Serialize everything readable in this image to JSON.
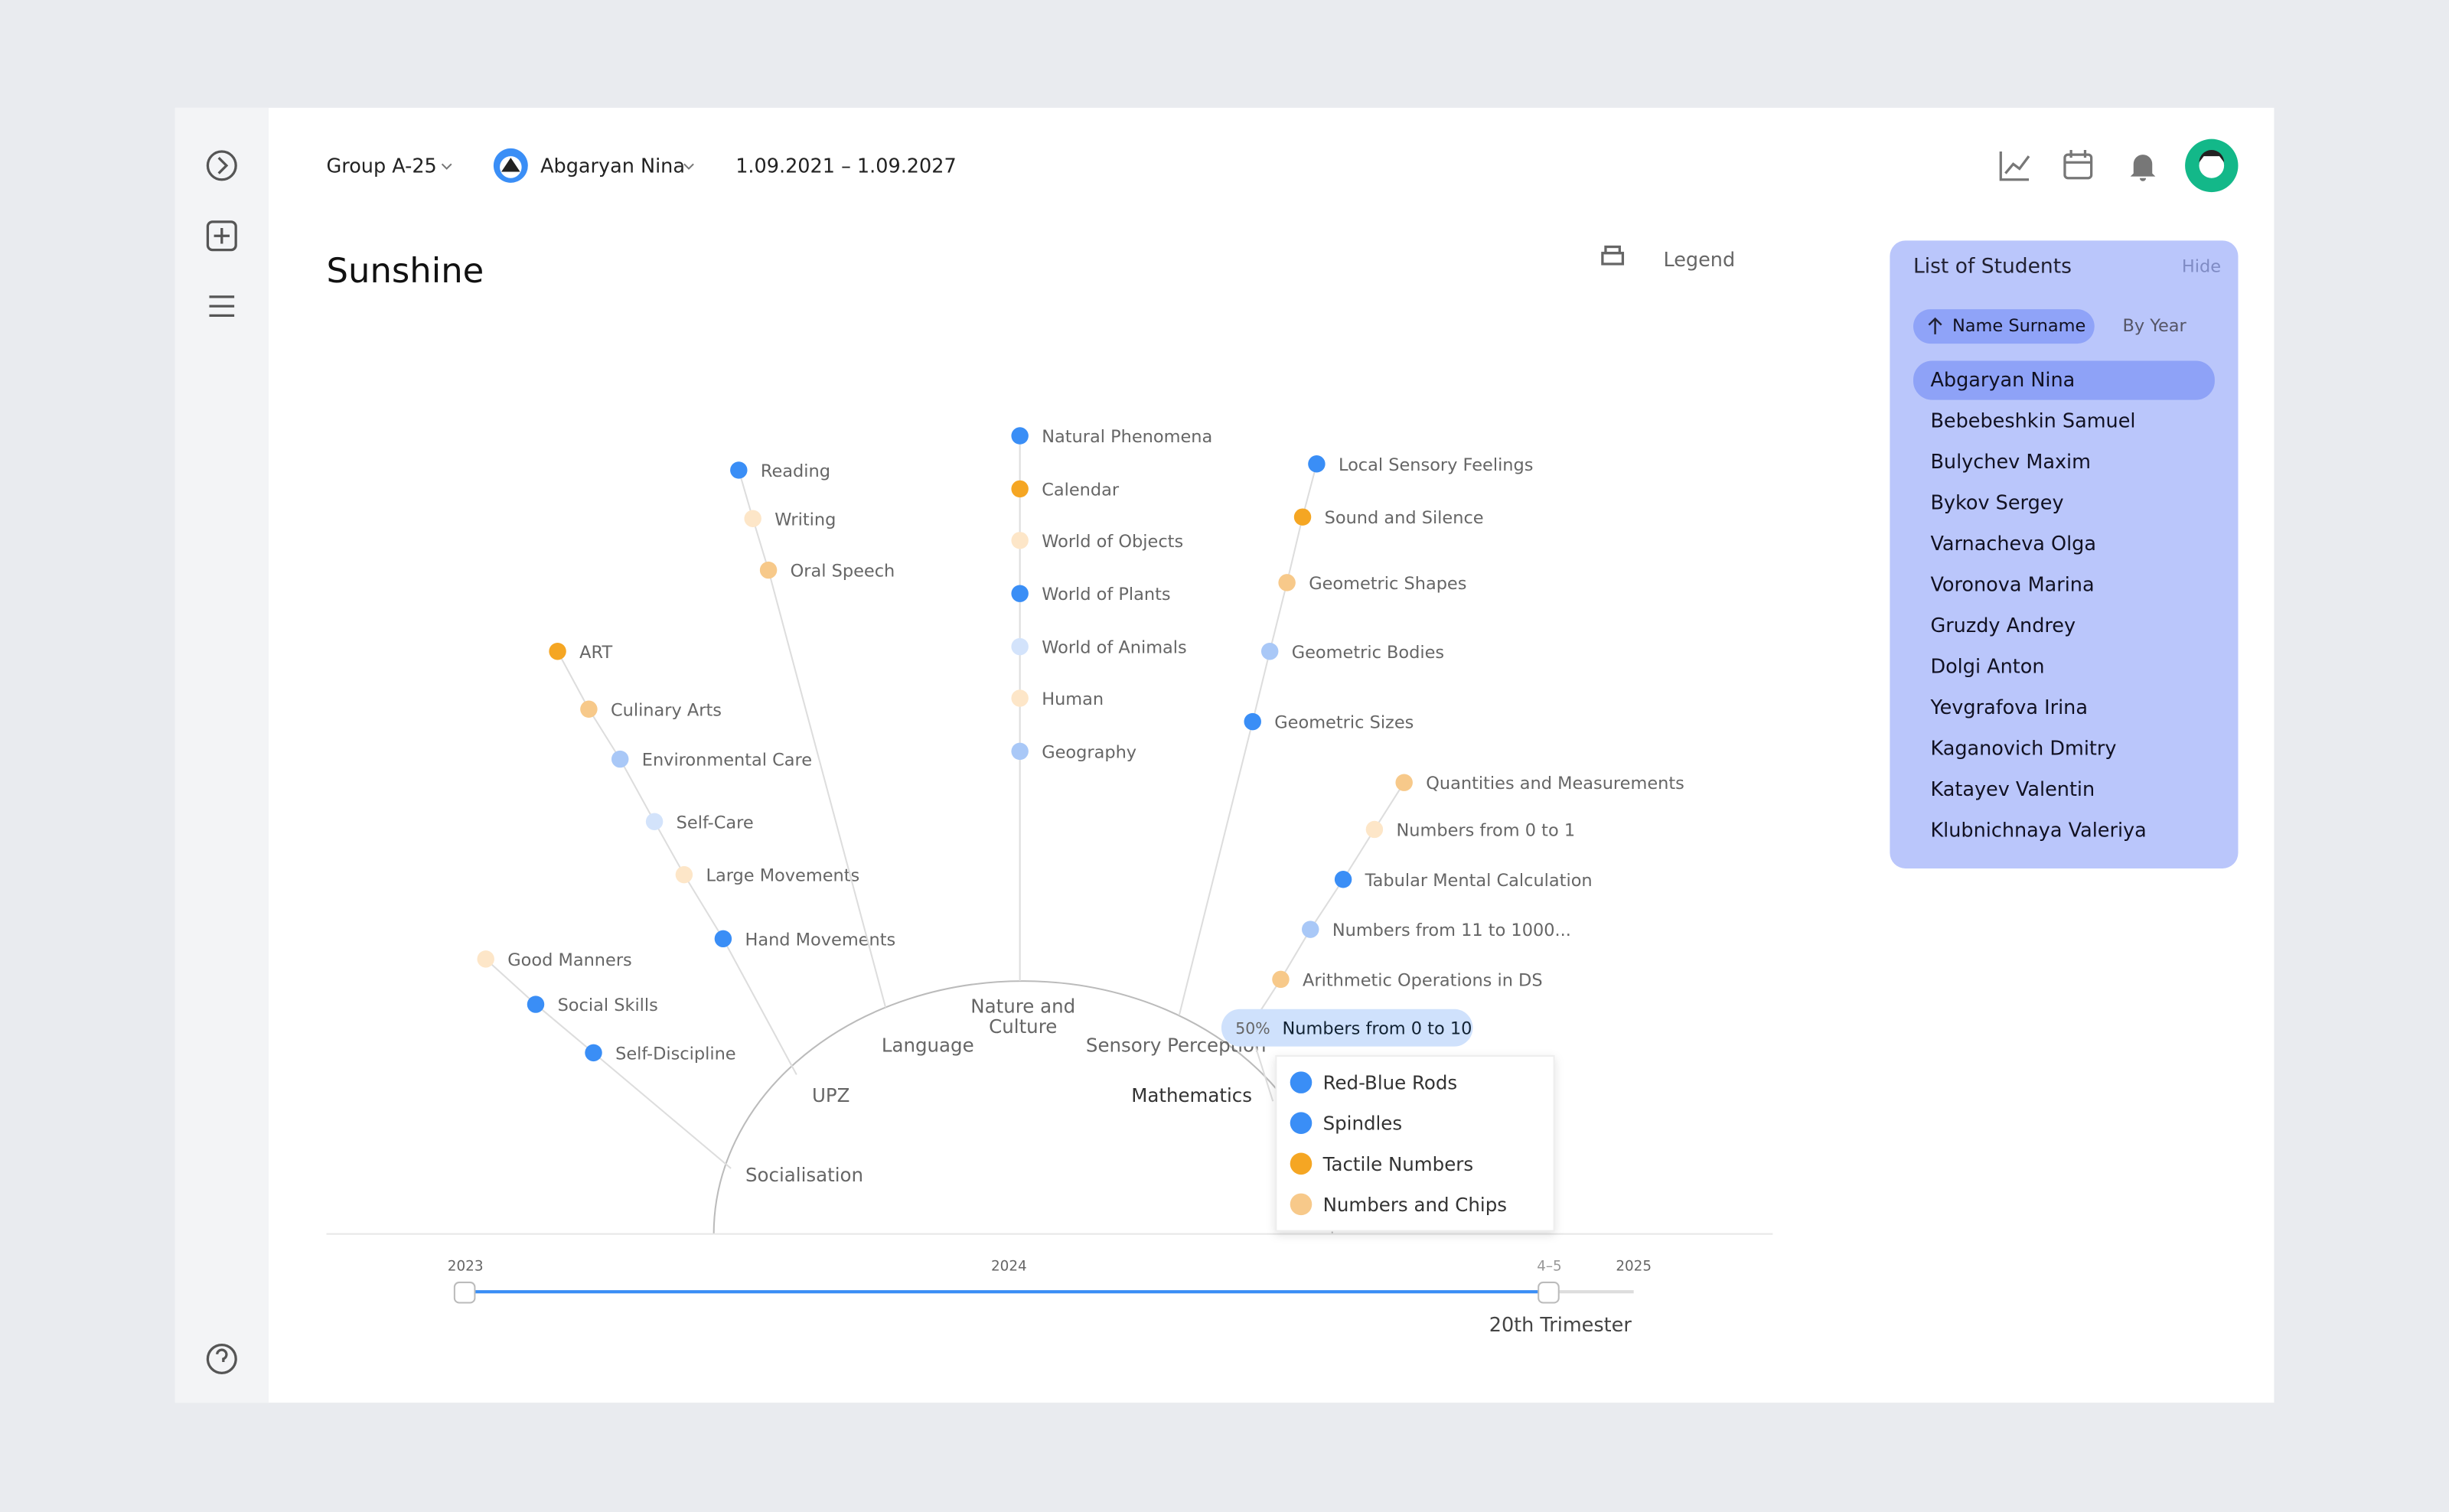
{
  "header": {
    "group": "Group A-25",
    "student": "Abgaryan Nina",
    "period": "1.09.2021 – 1.09.2027",
    "title": "Sunshine",
    "legend_button": "Legend"
  },
  "branches": [
    {
      "label": "Socialisation",
      "items": [
        {
          "label": "Self-Discipline",
          "color": "#3a8ef6"
        },
        {
          "label": "Social Skills",
          "color": "#3a8ef6"
        },
        {
          "label": "Good Manners",
          "color": "#fde6c8"
        }
      ]
    },
    {
      "label": "UPZ",
      "items": [
        {
          "label": "Hand Movements",
          "color": "#3a8ef6"
        },
        {
          "label": "Large Movements",
          "color": "#fde6c8"
        },
        {
          "label": "Self-Care",
          "color": "#d3e3fb"
        },
        {
          "label": "Environmental Care",
          "color": "#a9c8f7"
        },
        {
          "label": "Culinary Arts",
          "color": "#f7c98a"
        },
        {
          "label": "ART",
          "color": "#f5a623"
        }
      ]
    },
    {
      "label": "Language",
      "items": [
        {
          "label": "Oral Speech",
          "color": "#f7c98a"
        },
        {
          "label": "Writing",
          "color": "#fde6c8"
        },
        {
          "label": "Reading",
          "color": "#3a8ef6"
        }
      ]
    },
    {
      "label": "Nature and Culture",
      "items": [
        {
          "label": "Geography",
          "color": "#a9c8f7"
        },
        {
          "label": "Human",
          "color": "#fde6c8"
        },
        {
          "label": "World of Animals",
          "color": "#d3e3fb"
        },
        {
          "label": "World of Plants",
          "color": "#3a8ef6"
        },
        {
          "label": "World of Objects",
          "color": "#fde6c8"
        },
        {
          "label": "Calendar",
          "color": "#f5a623"
        },
        {
          "label": "Natural Phenomena",
          "color": "#3a8ef6"
        }
      ]
    },
    {
      "label": "Sensory Perception",
      "items": [
        {
          "label": "Geometric Sizes",
          "color": "#3a8ef6"
        },
        {
          "label": "Geometric Bodies",
          "color": "#a9c8f7"
        },
        {
          "label": "Geometric Shapes",
          "color": "#f7c98a"
        },
        {
          "label": "Sound and Silence",
          "color": "#f5a623"
        },
        {
          "label": "Local Sensory Feelings",
          "color": "#3a8ef6"
        }
      ]
    },
    {
      "label": "Mathematics",
      "items": [
        {
          "label": "Numbers from 0 to 10",
          "color": "#a9c8f7",
          "percent": "50%",
          "subitems": [
            {
              "label": "Red-Blue Rods",
              "color": "#3a8ef6"
            },
            {
              "label": "Spindles",
              "color": "#3a8ef6"
            },
            {
              "label": "Tactile Numbers",
              "color": "#f5a623"
            },
            {
              "label": "Numbers and Chips",
              "color": "#f7c98a"
            }
          ]
        },
        {
          "label": "Arithmetic Operations in DS",
          "color": "#f7c98a"
        },
        {
          "label": "Numbers from 11 to 1000...",
          "color": "#a9c8f7"
        },
        {
          "label": "Tabular Mental Calculation",
          "color": "#3a8ef6"
        },
        {
          "label": "Numbers from 0 to 1",
          "color": "#fde6c8"
        },
        {
          "label": "Quantities and Measurements",
          "color": "#f7c98a"
        }
      ]
    }
  ],
  "timeline": {
    "start": "2023",
    "middle": "2024",
    "end": "2025",
    "current": "4–5",
    "period": "20th Trimester"
  },
  "students": {
    "title": "List of Students",
    "hide": "Hide",
    "sort_name": "Name Surname",
    "sort_year": "By Year",
    "names": [
      "Abgaryan Nina",
      "Bebebeshkin Samuel",
      "Bulychev Maxim",
      "Bykov Sergey",
      "Varnacheva Olga",
      "Voronova Marina",
      "Gruzdy Andrey",
      "Dolgi Anton",
      "Yevgrafova Irina",
      "Kaganovich Dmitry",
      "Katayev Valentin",
      "Klubnichnaya Valeriya"
    ]
  }
}
